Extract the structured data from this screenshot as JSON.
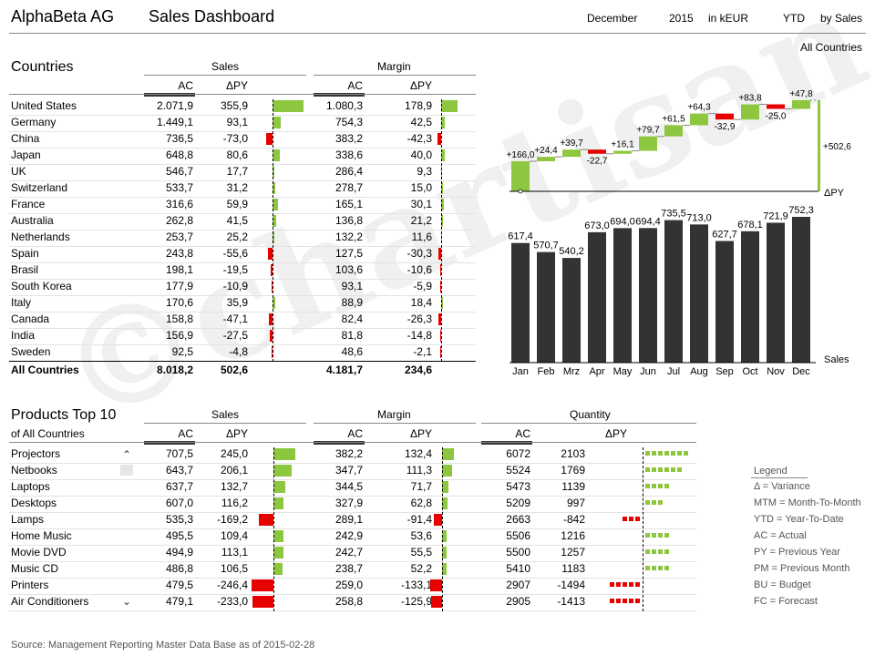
{
  "header": {
    "company": "AlphaBeta AG",
    "title": "Sales Dashboard",
    "month": "December",
    "year": "2015",
    "unit": "in kEUR",
    "period": "YTD",
    "view": "by Sales",
    "filter": "All Countries"
  },
  "countries": {
    "title": "Countries",
    "sales_label": "Sales",
    "margin_label": "Margin",
    "ac_label": "AC",
    "dpy_label": "ΔPY",
    "rows": [
      {
        "name": "United States",
        "s_ac": "2.071,9",
        "s_dpy": "355,9",
        "s_v": 355.9,
        "m_ac": "1.080,3",
        "m_dpy": "178,9",
        "m_v": 178.9
      },
      {
        "name": "Germany",
        "s_ac": "1.449,1",
        "s_dpy": "93,1",
        "s_v": 93.1,
        "m_ac": "754,3",
        "m_dpy": "42,5",
        "m_v": 42.5
      },
      {
        "name": "China",
        "s_ac": "736,5",
        "s_dpy": "-73,0",
        "s_v": -73.0,
        "m_ac": "383,2",
        "m_dpy": "-42,3",
        "m_v": -42.3
      },
      {
        "name": "Japan",
        "s_ac": "648,8",
        "s_dpy": "80,6",
        "s_v": 80.6,
        "m_ac": "338,6",
        "m_dpy": "40,0",
        "m_v": 40.0
      },
      {
        "name": "UK",
        "s_ac": "546,7",
        "s_dpy": "17,7",
        "s_v": 17.7,
        "m_ac": "286,4",
        "m_dpy": "9,3",
        "m_v": 9.3
      },
      {
        "name": "Switzerland",
        "s_ac": "533,7",
        "s_dpy": "31,2",
        "s_v": 31.2,
        "m_ac": "278,7",
        "m_dpy": "15,0",
        "m_v": 15.0
      },
      {
        "name": "France",
        "s_ac": "316,6",
        "s_dpy": "59,9",
        "s_v": 59.9,
        "m_ac": "165,1",
        "m_dpy": "30,1",
        "m_v": 30.1
      },
      {
        "name": "Australia",
        "s_ac": "262,8",
        "s_dpy": "41,5",
        "s_v": 41.5,
        "m_ac": "136,8",
        "m_dpy": "21,2",
        "m_v": 21.2
      },
      {
        "name": "Netherlands",
        "s_ac": "253,7",
        "s_dpy": "25,2",
        "s_v": 25.2,
        "m_ac": "132,2",
        "m_dpy": "11,6",
        "m_v": 11.6
      },
      {
        "name": "Spain",
        "s_ac": "243,8",
        "s_dpy": "-55,6",
        "s_v": -55.6,
        "m_ac": "127,5",
        "m_dpy": "-30,3",
        "m_v": -30.3
      },
      {
        "name": "Brasil",
        "s_ac": "198,1",
        "s_dpy": "-19,5",
        "s_v": -19.5,
        "m_ac": "103,6",
        "m_dpy": "-10,6",
        "m_v": -10.6
      },
      {
        "name": "South Korea",
        "s_ac": "177,9",
        "s_dpy": "-10,9",
        "s_v": -10.9,
        "m_ac": "93,1",
        "m_dpy": "-5,9",
        "m_v": -5.9
      },
      {
        "name": "Italy",
        "s_ac": "170,6",
        "s_dpy": "35,9",
        "s_v": 35.9,
        "m_ac": "88,9",
        "m_dpy": "18,4",
        "m_v": 18.4
      },
      {
        "name": "Canada",
        "s_ac": "158,8",
        "s_dpy": "-47,1",
        "s_v": -47.1,
        "m_ac": "82,4",
        "m_dpy": "-26,3",
        "m_v": -26.3
      },
      {
        "name": "India",
        "s_ac": "156,9",
        "s_dpy": "-27,5",
        "s_v": -27.5,
        "m_ac": "81,8",
        "m_dpy": "-14,8",
        "m_v": -14.8
      },
      {
        "name": "Sweden",
        "s_ac": "92,5",
        "s_dpy": "-4,8",
        "s_v": -4.8,
        "m_ac": "48,6",
        "m_dpy": "-2,1",
        "m_v": -2.1
      }
    ],
    "total": {
      "name": "All Countries",
      "s_ac": "8.018,2",
      "s_dpy": "502,6",
      "m_ac": "4.181,7",
      "m_dpy": "234,6"
    }
  },
  "products": {
    "title": "Products Top 10",
    "subtitle": "of All Countries",
    "sales_label": "Sales",
    "margin_label": "Margin",
    "quantity_label": "Quantity",
    "ac_label": "AC",
    "dpy_label": "ΔPY",
    "rows": [
      {
        "name": "Projectors",
        "s_ac": "707,5",
        "s_dpy": "245,0",
        "s_v": 245.0,
        "m_ac": "382,2",
        "m_dpy": "132,4",
        "m_v": 132.4,
        "q_ac": "6072",
        "q_dpy": "2103",
        "q_v": 2103
      },
      {
        "name": "Netbooks",
        "s_ac": "643,7",
        "s_dpy": "206,1",
        "s_v": 206.1,
        "m_ac": "347,7",
        "m_dpy": "111,3",
        "m_v": 111.3,
        "q_ac": "5524",
        "q_dpy": "1769",
        "q_v": 1769
      },
      {
        "name": "Laptops",
        "s_ac": "637,7",
        "s_dpy": "132,7",
        "s_v": 132.7,
        "m_ac": "344,5",
        "m_dpy": "71,7",
        "m_v": 71.7,
        "q_ac": "5473",
        "q_dpy": "1139",
        "q_v": 1139
      },
      {
        "name": "Desktops",
        "s_ac": "607,0",
        "s_dpy": "116,2",
        "s_v": 116.2,
        "m_ac": "327,9",
        "m_dpy": "62,8",
        "m_v": 62.8,
        "q_ac": "5209",
        "q_dpy": "997",
        "q_v": 997
      },
      {
        "name": "Lamps",
        "s_ac": "535,3",
        "s_dpy": "-169,2",
        "s_v": -169.2,
        "m_ac": "289,1",
        "m_dpy": "-91,4",
        "m_v": -91.4,
        "q_ac": "2663",
        "q_dpy": "-842",
        "q_v": -842
      },
      {
        "name": "Home Music",
        "s_ac": "495,5",
        "s_dpy": "109,4",
        "s_v": 109.4,
        "m_ac": "242,9",
        "m_dpy": "53,6",
        "m_v": 53.6,
        "q_ac": "5506",
        "q_dpy": "1216",
        "q_v": 1216
      },
      {
        "name": "Movie DVD",
        "s_ac": "494,9",
        "s_dpy": "113,1",
        "s_v": 113.1,
        "m_ac": "242,7",
        "m_dpy": "55,5",
        "m_v": 55.5,
        "q_ac": "5500",
        "q_dpy": "1257",
        "q_v": 1257
      },
      {
        "name": "Music CD",
        "s_ac": "486,8",
        "s_dpy": "106,5",
        "s_v": 106.5,
        "m_ac": "238,7",
        "m_dpy": "52,2",
        "m_v": 52.2,
        "q_ac": "5410",
        "q_dpy": "1183",
        "q_v": 1183
      },
      {
        "name": "Printers",
        "s_ac": "479,5",
        "s_dpy": "-246,4",
        "s_v": -246.4,
        "m_ac": "259,0",
        "m_dpy": "-133,1",
        "m_v": -133.1,
        "q_ac": "2907",
        "q_dpy": "-1494",
        "q_v": -1494
      },
      {
        "name": "Air Conditioners",
        "s_ac": "479,1",
        "s_dpy": "-233,0",
        "s_v": -233.0,
        "m_ac": "258,8",
        "m_dpy": "-125,9",
        "m_v": -125.9,
        "q_ac": "2905",
        "q_dpy": "-1413",
        "q_v": -1413
      }
    ]
  },
  "legend": {
    "title": "Legend",
    "items": [
      "Δ = Variance",
      "MTM = Month-To-Month",
      "YTD = Year-To-Date",
      "AC = Actual",
      "PY = Previous Year",
      "PM = Previous Month",
      "BU = Budget",
      "FC = Forecast"
    ]
  },
  "footer": "Source: Management Reporting Master Data Base as of 2015-02-28",
  "watermark": "©chartisan GmbH",
  "colors": {
    "positive": "#8dc63f",
    "negative": "#e60000",
    "actual": "#333333"
  },
  "chart_data": [
    {
      "type": "bar",
      "categories": [
        "Jan",
        "Feb",
        "Mrz",
        "Apr",
        "May",
        "Jun",
        "Jul",
        "Aug",
        "Sep",
        "Oct",
        "Nov",
        "Dec"
      ],
      "values": [
        617.4,
        570.7,
        540.2,
        673.0,
        694.0,
        694.4,
        735.5,
        713.0,
        627.7,
        678.1,
        721.9,
        752.3
      ],
      "labels": [
        "617,4",
        "570,7",
        "540,2",
        "673,0",
        "694,0",
        "694,4",
        "735,5",
        "713,0",
        "627,7",
        "678,1",
        "721,9",
        "752,3"
      ],
      "series_label": "Sales"
    },
    {
      "type": "waterfall",
      "categories": [
        "Jan",
        "Feb",
        "Mrz",
        "Apr",
        "May",
        "Jun",
        "Jul",
        "Aug",
        "Sep",
        "Oct",
        "Nov",
        "Dec"
      ],
      "values": [
        166.0,
        24.4,
        39.7,
        -22.7,
        16.1,
        79.7,
        61.5,
        64.3,
        -32.9,
        83.8,
        -25.0,
        47.8
      ],
      "labels": [
        "+166,0",
        "+24,4",
        "+39,7",
        "-22,7",
        "+16,1",
        "+79,7",
        "+61,5",
        "+64,3",
        "-32,9",
        "+83,8",
        "-25,0",
        "+47,8"
      ],
      "total": 502.6,
      "total_label": "+502,6",
      "axis_label": "ΔPY"
    }
  ]
}
